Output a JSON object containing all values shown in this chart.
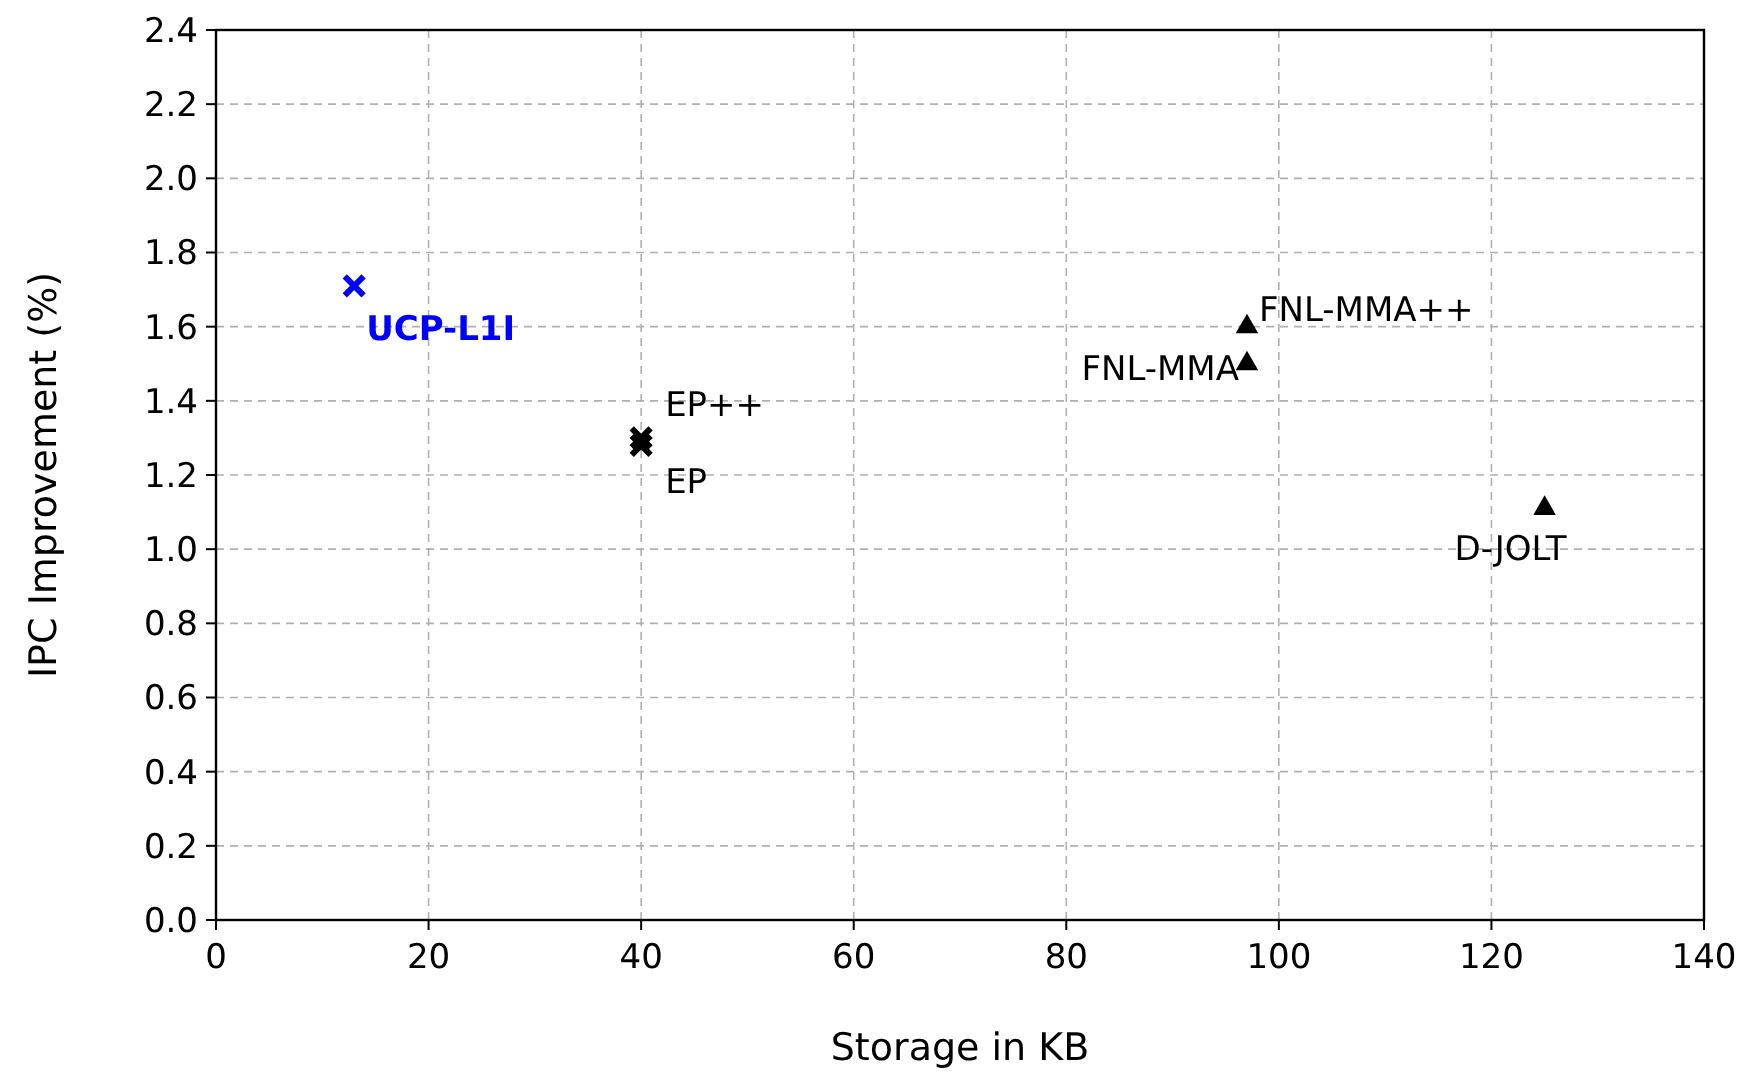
{
  "chart_data": {
    "type": "scatter",
    "xlabel": "Storage in KB",
    "ylabel": "IPC Improvement (%)",
    "xlim": [
      0,
      140
    ],
    "xticks": [
      0,
      20,
      40,
      60,
      80,
      100,
      120,
      140
    ],
    "ylim": [
      0,
      2.4
    ],
    "yticks": [
      {
        "value": 0,
        "label": "0.0"
      },
      {
        "value": 0.2,
        "label": "0.2"
      },
      {
        "value": 0.4,
        "label": "0.4"
      },
      {
        "value": 0.6,
        "label": "0.6"
      },
      {
        "value": 0.8,
        "label": "0.8"
      },
      {
        "value": 1,
        "label": "1.0"
      },
      {
        "value": 1.2,
        "label": "1.2"
      },
      {
        "value": 1.4,
        "label": "1.4"
      },
      {
        "value": 1.6,
        "label": "1.6"
      },
      {
        "value": 1.8,
        "label": "1.8"
      },
      {
        "value": 2,
        "label": "2.0"
      },
      {
        "value": 2.2,
        "label": "2.2"
      },
      {
        "value": 2.4,
        "label": "2.4"
      }
    ],
    "grid": true,
    "series": [
      {
        "name": "UCP-L1I",
        "color": "#0000ff",
        "marker": "cross",
        "x": [
          13
        ],
        "values": [
          1.71
        ]
      },
      {
        "name": "EP++",
        "color": "#000000",
        "marker": "cross",
        "x": [
          40
        ],
        "values": [
          1.3
        ]
      },
      {
        "name": "EP",
        "color": "#000000",
        "marker": "cross",
        "x": [
          40
        ],
        "values": [
          1.28
        ]
      },
      {
        "name": "FNL-MMA++",
        "color": "#000000",
        "marker": "triangle",
        "x": [
          97
        ],
        "values": [
          1.6
        ]
      },
      {
        "name": "FNL-MMA",
        "color": "#000000",
        "marker": "triangle",
        "x": [
          97
        ],
        "values": [
          1.5
        ]
      },
      {
        "name": "D-JOLT",
        "color": "#000000",
        "marker": "triangle",
        "x": [
          125
        ],
        "values": [
          1.11
        ]
      }
    ]
  }
}
